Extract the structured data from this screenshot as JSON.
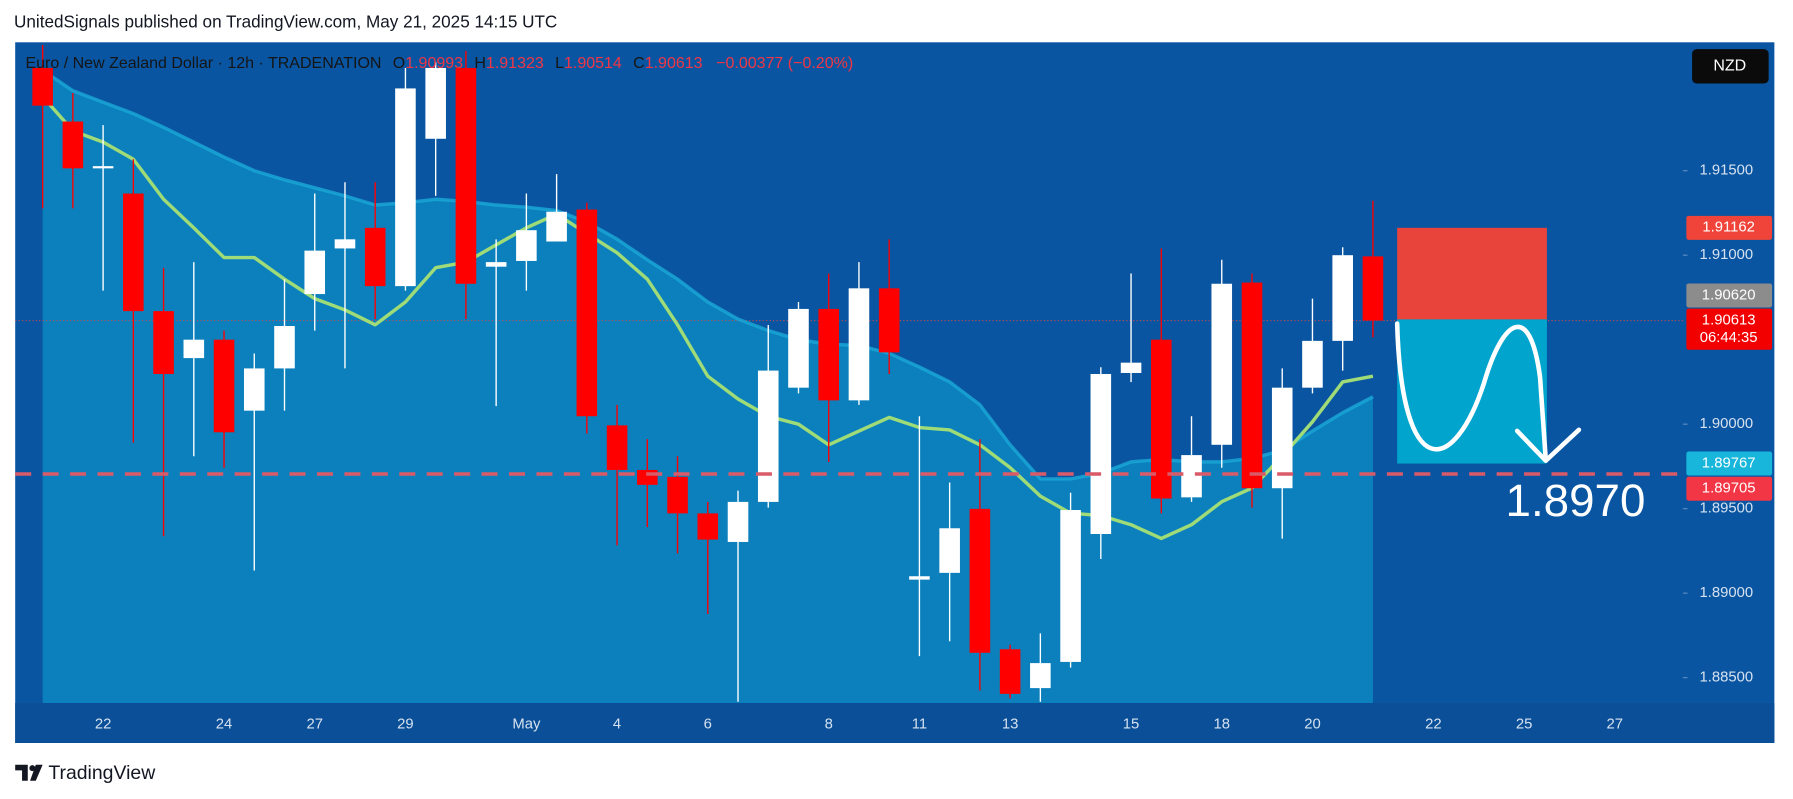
{
  "header": {
    "publisher": "UnitedSignals published on TradingView.com, May 21, 2025 14:15 UTC"
  },
  "chart_data": {
    "type": "candlestick",
    "title": "Euro / New Zealand Dollar · 12h · TRADENATION",
    "legend": {
      "o_label": "O",
      "open": 1.90993,
      "h_label": "H",
      "high": 1.91323,
      "l_label": "L",
      "low": 1.90514,
      "c_label": "C",
      "close": 1.90613,
      "change": "−0.00377 (−0.20%)"
    },
    "currency": "NZD",
    "categories": [
      null,
      null,
      "22",
      null,
      null,
      null,
      "24",
      null,
      null,
      "27",
      null,
      null,
      "29",
      null,
      null,
      null,
      "May",
      null,
      null,
      "4",
      null,
      null,
      "6",
      null,
      null,
      null,
      "8",
      null,
      null,
      "11",
      null,
      null,
      "13",
      null,
      null,
      null,
      "15",
      null,
      null,
      "18",
      null,
      null,
      "20",
      null,
      null,
      null,
      "22",
      null,
      null,
      "25",
      null,
      null,
      "27",
      null,
      null
    ],
    "open": [
      1.92108,
      1.91791,
      1.91514,
      1.91365,
      1.90669,
      1.90391,
      1.905,
      1.9008,
      1.9033,
      1.9077,
      1.9104,
      1.91162,
      1.90817,
      1.91689,
      1.92108,
      1.90932,
      1.90966,
      1.91081,
      1.9127,
      1.89993,
      1.89729,
      1.89688,
      1.89472,
      1.89303,
      1.8954,
      1.90216,
      1.90682,
      1.90141,
      1.90804,
      1.8908,
      1.8912,
      1.89499,
      1.88668,
      1.88438,
      1.88593,
      1.8935,
      1.90303,
      1.905,
      1.89567,
      1.89878,
      1.90838,
      1.89621,
      1.90216,
      1.90493,
      1.90993,
      null,
      null,
      null,
      null,
      null,
      null,
      null,
      null,
      null,
      null
    ],
    "high": [
      1.92244,
      1.9196,
      1.9177,
      1.91568,
      1.90925,
      1.90959,
      1.90554,
      1.90418,
      1.90858,
      1.91365,
      1.91432,
      1.91432,
      1.92108,
      1.92142,
      1.92209,
      1.91094,
      1.91365,
      1.9148,
      1.91311,
      1.90114,
      1.89911,
      1.8981,
      1.8954,
      1.89607,
      1.90587,
      1.90723,
      1.90892,
      1.90959,
      1.91094,
      1.90047,
      1.89655,
      1.89911,
      1.88695,
      1.88762,
      1.89594,
      1.90337,
      1.90892,
      1.9104,
      1.90047,
      1.90973,
      1.90892,
      1.9033,
      1.90743,
      1.91047,
      1.91323,
      null,
      null,
      null,
      null,
      null,
      null,
      null,
      null,
      null,
      null
    ],
    "low": [
      1.91277,
      1.91277,
      1.9079,
      1.89891,
      1.89337,
      1.8981,
      1.89742,
      1.89134,
      1.9008,
      1.90554,
      1.9033,
      1.90621,
      1.9079,
      1.91351,
      1.90621,
      1.90107,
      1.9079,
      1.91081,
      1.89945,
      1.89283,
      1.89391,
      1.89235,
      1.88877,
      1.88357,
      1.89506,
      1.90182,
      1.89776,
      1.90114,
      1.90297,
      1.88627,
      1.88715,
      1.88424,
      1.88377,
      1.88357,
      1.88559,
      1.89202,
      1.90249,
      1.89472,
      1.8954,
      1.89742,
      1.89506,
      1.89323,
      1.90182,
      1.90317,
      1.90514,
      null,
      null,
      null,
      null,
      null,
      null,
      null,
      null,
      null,
      null
    ],
    "close": [
      1.91885,
      1.91514,
      1.91527,
      1.90669,
      1.90297,
      1.905,
      1.89952,
      1.9033,
      1.90581,
      1.91027,
      1.91094,
      1.90817,
      1.91987,
      1.92108,
      1.90831,
      1.90959,
      1.91148,
      1.91257,
      1.90047,
      1.89729,
      1.89641,
      1.89472,
      1.89317,
      1.8954,
      1.90317,
      1.90682,
      1.90141,
      1.90804,
      1.90425,
      1.891,
      1.89384,
      1.88647,
      1.88404,
      1.88586,
      1.89492,
      1.90297,
      1.90364,
      1.8956,
      1.89817,
      1.90831,
      1.89621,
      1.90216,
      1.90493,
      1.91,
      1.90613,
      null,
      null,
      null,
      null,
      null,
      null,
      null,
      null,
      null,
      null
    ],
    "up_color": "#ffffff",
    "down_color": "#ff0000",
    "overlays": [
      {
        "color": "#1aa6d6",
        "fill": "#0b85bf",
        "values": [
          1.92095,
          1.91973,
          1.91905,
          1.91838,
          1.91757,
          1.91669,
          1.91581,
          1.915,
          1.91446,
          1.91399,
          1.91351,
          1.91297,
          1.91311,
          1.91331,
          1.91318,
          1.91297,
          1.91284,
          1.91264,
          1.91196,
          1.91095,
          1.90973,
          1.90858,
          1.90723,
          1.90622,
          1.90554,
          1.905,
          1.90473,
          1.90466,
          1.90419,
          1.90338,
          1.9025,
          1.90115,
          1.89878,
          1.89676,
          1.89676,
          1.8971,
          1.89777,
          1.89791,
          1.89777,
          1.89777,
          1.89797,
          1.89845,
          1.89959,
          1.90068,
          1.90162,
          null,
          null,
          null,
          null,
          null,
          null,
          null,
          null,
          null,
          null
        ]
      },
      {
        "color": "#9fdc78",
        "values": [
          1.91939,
          1.91736,
          1.91669,
          1.91568,
          1.91331,
          1.91162,
          1.90986,
          1.90986,
          1.90858,
          1.90743,
          1.90676,
          1.90588,
          1.90723,
          1.90926,
          1.90959,
          1.91061,
          1.91162,
          1.91243,
          1.91128,
          1.91014,
          1.90858,
          1.90588,
          1.90284,
          1.90149,
          1.90047,
          1.9,
          1.89878,
          1.89959,
          1.9004,
          1.8998,
          1.89966,
          1.89878,
          1.89743,
          1.89574,
          1.89473,
          1.89459,
          1.89405,
          1.89324,
          1.89405,
          1.89541,
          1.89622,
          1.89811,
          1.90014,
          1.9025,
          1.90284,
          null,
          null,
          null,
          null,
          null,
          null,
          null,
          null,
          null,
          null
        ]
      }
    ],
    "ylim": [
      1.8835,
      1.9226
    ],
    "yticks": [
      {
        "value": 1.885,
        "label": "1.88500"
      },
      {
        "value": 1.89,
        "label": "1.89000"
      },
      {
        "value": 1.895,
        "label": "1.89500"
      },
      {
        "value": 1.9,
        "label": "1.90000"
      },
      {
        "value": 1.91,
        "label": "1.91000"
      },
      {
        "value": 1.915,
        "label": "1.91500"
      }
    ],
    "price_labels": [
      {
        "value": 1.91162,
        "label": "1.91162",
        "color": "#f0443a"
      },
      {
        "value": 1.9062,
        "label": "1.90620",
        "color": "#8c8c8c"
      },
      {
        "value": 1.90613,
        "label": "1.90613",
        "color": "#f20000",
        "countdown": "06:44:35"
      },
      {
        "value": 1.89767,
        "label": "1.89767",
        "color": "#17b6da"
      },
      {
        "value": 1.89705,
        "label": "1.89705",
        "color": "#f23645"
      }
    ],
    "position": {
      "stop": 1.91162,
      "entry": 1.9062,
      "target": 1.89767,
      "stop_color": "#f44336",
      "target_color": "#00a9d0"
    },
    "level": {
      "value": 1.89705,
      "color": "#d95a68"
    },
    "annotation": "1.8970"
  },
  "footer": {
    "brand": "TradingView"
  }
}
